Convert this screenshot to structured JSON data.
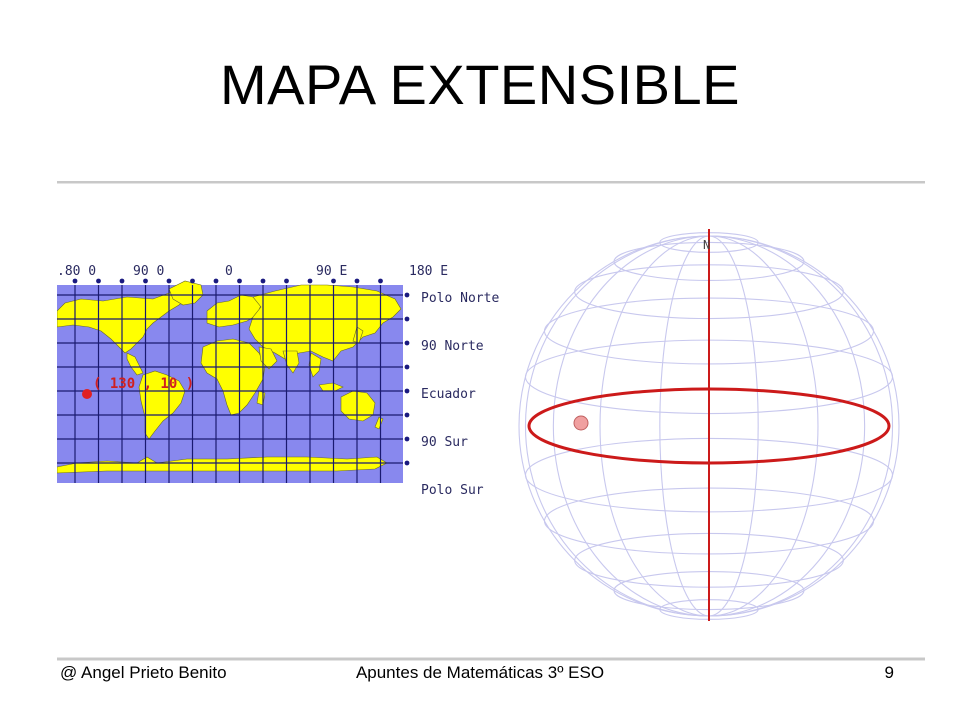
{
  "slide": {
    "title": "MAPA EXTENSIBLE"
  },
  "map": {
    "longitude_labels": [
      ".80 0",
      "90 0",
      "0",
      "90 E",
      "180 E"
    ],
    "latitude_labels": [
      "Polo Norte",
      "90 Norte",
      "Ecuador",
      "90 Sur",
      "Polo Sur"
    ],
    "point_label": "( 130 , 10 )"
  },
  "globe": {
    "axis_label": "N"
  },
  "footer": {
    "author": "@ Angel Prieto Benito",
    "course": "Apuntes de Matemáticas 3º ESO",
    "page_number": "9"
  },
  "colors": {
    "ocean": "#8888ee",
    "land": "#ffff00",
    "grid": "#1a1a70",
    "equator": "#cc1a1a",
    "wireframe": "#c8c8ee",
    "point": "#e02020"
  }
}
